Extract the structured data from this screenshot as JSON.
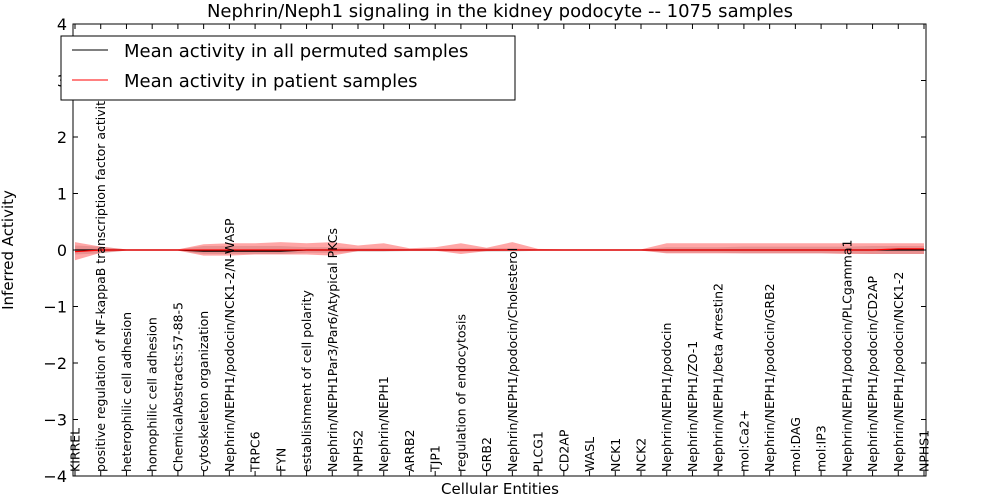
{
  "chart_data": {
    "type": "line",
    "title": "Nephrin/Neph1 signaling in the kidney podocyte -- 1075 samples",
    "xlabel": "Cellular Entities",
    "ylabel": "Inferred Activity",
    "ylim": [
      -4,
      4
    ],
    "yticks": [
      {
        "value": 4,
        "label": "4"
      },
      {
        "value": 3,
        "label": "3"
      },
      {
        "value": 2,
        "label": "2"
      },
      {
        "value": 1,
        "label": "1"
      },
      {
        "value": 0,
        "label": "0"
      },
      {
        "value": -1,
        "label": "−1"
      },
      {
        "value": -2,
        "label": "−2"
      },
      {
        "value": -3,
        "label": "−3"
      },
      {
        "value": -4,
        "label": "−4"
      }
    ],
    "legend_position": "top-left",
    "categories": [
      "KIRREL",
      "positive regulation of NF-kappaB transcription factor activity",
      "heterophilic cell adhesion",
      "homophilic cell adhesion",
      "ChemicalAbstracts:57-88-5",
      "cytoskeleton organization",
      "Nephrin/NEPH1/podocin/NCK1-2/N-WASP",
      "TRPC6",
      "FYN",
      "establishment of cell polarity",
      "Nephrin/NEPH1Par3/Par6/Atypical PKCs",
      "NPHS2",
      "Nephrin/NEPH1",
      "ARRB2",
      "TJP1",
      "regulation of endocytosis",
      "GRB2",
      "Nephrin/NEPH1/podocin/Cholesterol",
      "PLCG1",
      "CD2AP",
      "WASL",
      "NCK1",
      "NCK2",
      "Nephrin/NEPH1/podocin",
      "Nephrin/NEPH1/ZO-1",
      "Nephrin/NEPH1/beta Arrestin2",
      "mol:Ca2+",
      "Nephrin/NEPH1/podocin/GRB2",
      "mol:DAG",
      "mol:IP3",
      "Nephrin/NEPH1/podocin/PLCgamma1",
      "Nephrin/NEPH1/podocin/CD2AP",
      "Nephrin/NEPH1/podocin/NCK1-2",
      "NPHS1"
    ],
    "series": [
      {
        "name": "Mean activity in all permuted samples",
        "color": "#000000",
        "values": [
          0.0,
          0.0,
          0.0,
          0.0,
          0.0,
          -0.02,
          -0.02,
          -0.02,
          -0.02,
          0.0,
          0.0,
          0.0,
          0.0,
          0.0,
          0.0,
          0.0,
          0.0,
          0.0,
          0.0,
          0.0,
          0.0,
          0.0,
          0.0,
          0.0,
          0.0,
          0.0,
          0.0,
          0.0,
          0.0,
          0.0,
          0.0,
          0.0,
          0.0,
          0.0
        ],
        "band_low": [
          -0.08,
          -0.06,
          -0.01,
          -0.01,
          -0.01,
          -0.07,
          -0.07,
          -0.07,
          -0.07,
          -0.05,
          -0.05,
          -0.03,
          -0.03,
          -0.02,
          -0.02,
          -0.03,
          -0.03,
          -0.03,
          -0.01,
          -0.01,
          -0.01,
          -0.01,
          -0.01,
          -0.05,
          -0.05,
          -0.05,
          -0.06,
          -0.06,
          -0.06,
          -0.06,
          -0.06,
          -0.07,
          -0.07,
          -0.07
        ],
        "band_high": [
          0.08,
          0.06,
          0.01,
          0.01,
          0.01,
          0.07,
          0.07,
          0.07,
          0.07,
          0.05,
          0.05,
          0.03,
          0.03,
          0.02,
          0.02,
          0.03,
          0.03,
          0.03,
          0.01,
          0.01,
          0.01,
          0.01,
          0.01,
          0.05,
          0.05,
          0.05,
          0.06,
          0.06,
          0.06,
          0.06,
          0.06,
          0.07,
          0.07,
          0.07
        ],
        "band_color": "#c8c8c8"
      },
      {
        "name": "Mean activity in patient samples",
        "color": "#ff0000",
        "values": [
          -0.03,
          0.0,
          0.0,
          0.0,
          0.0,
          0.0,
          0.0,
          0.0,
          0.0,
          0.0,
          0.0,
          0.0,
          0.0,
          0.0,
          0.0,
          0.0,
          0.0,
          0.0,
          0.0,
          0.0,
          0.0,
          0.0,
          0.0,
          0.0,
          0.0,
          0.0,
          0.0,
          0.0,
          0.0,
          0.0,
          0.0,
          0.0,
          0.02,
          0.02
        ],
        "band_low": [
          -0.18,
          -0.05,
          -0.01,
          -0.01,
          -0.01,
          -0.1,
          -0.1,
          -0.08,
          -0.08,
          -0.08,
          -0.1,
          -0.02,
          -0.02,
          -0.01,
          -0.01,
          -0.07,
          -0.02,
          -0.01,
          -0.01,
          -0.01,
          -0.01,
          -0.01,
          -0.01,
          -0.06,
          -0.06,
          -0.06,
          -0.06,
          -0.06,
          -0.06,
          -0.06,
          -0.07,
          -0.07,
          -0.07,
          -0.07
        ],
        "band_high": [
          0.14,
          0.06,
          0.01,
          0.01,
          0.01,
          0.1,
          0.12,
          0.12,
          0.14,
          0.12,
          0.14,
          0.08,
          0.12,
          0.03,
          0.05,
          0.12,
          0.04,
          0.14,
          0.02,
          0.01,
          0.01,
          0.01,
          0.01,
          0.12,
          0.12,
          0.12,
          0.12,
          0.12,
          0.12,
          0.12,
          0.12,
          0.12,
          0.12,
          0.12
        ],
        "band_color": "#ff0000"
      }
    ]
  }
}
